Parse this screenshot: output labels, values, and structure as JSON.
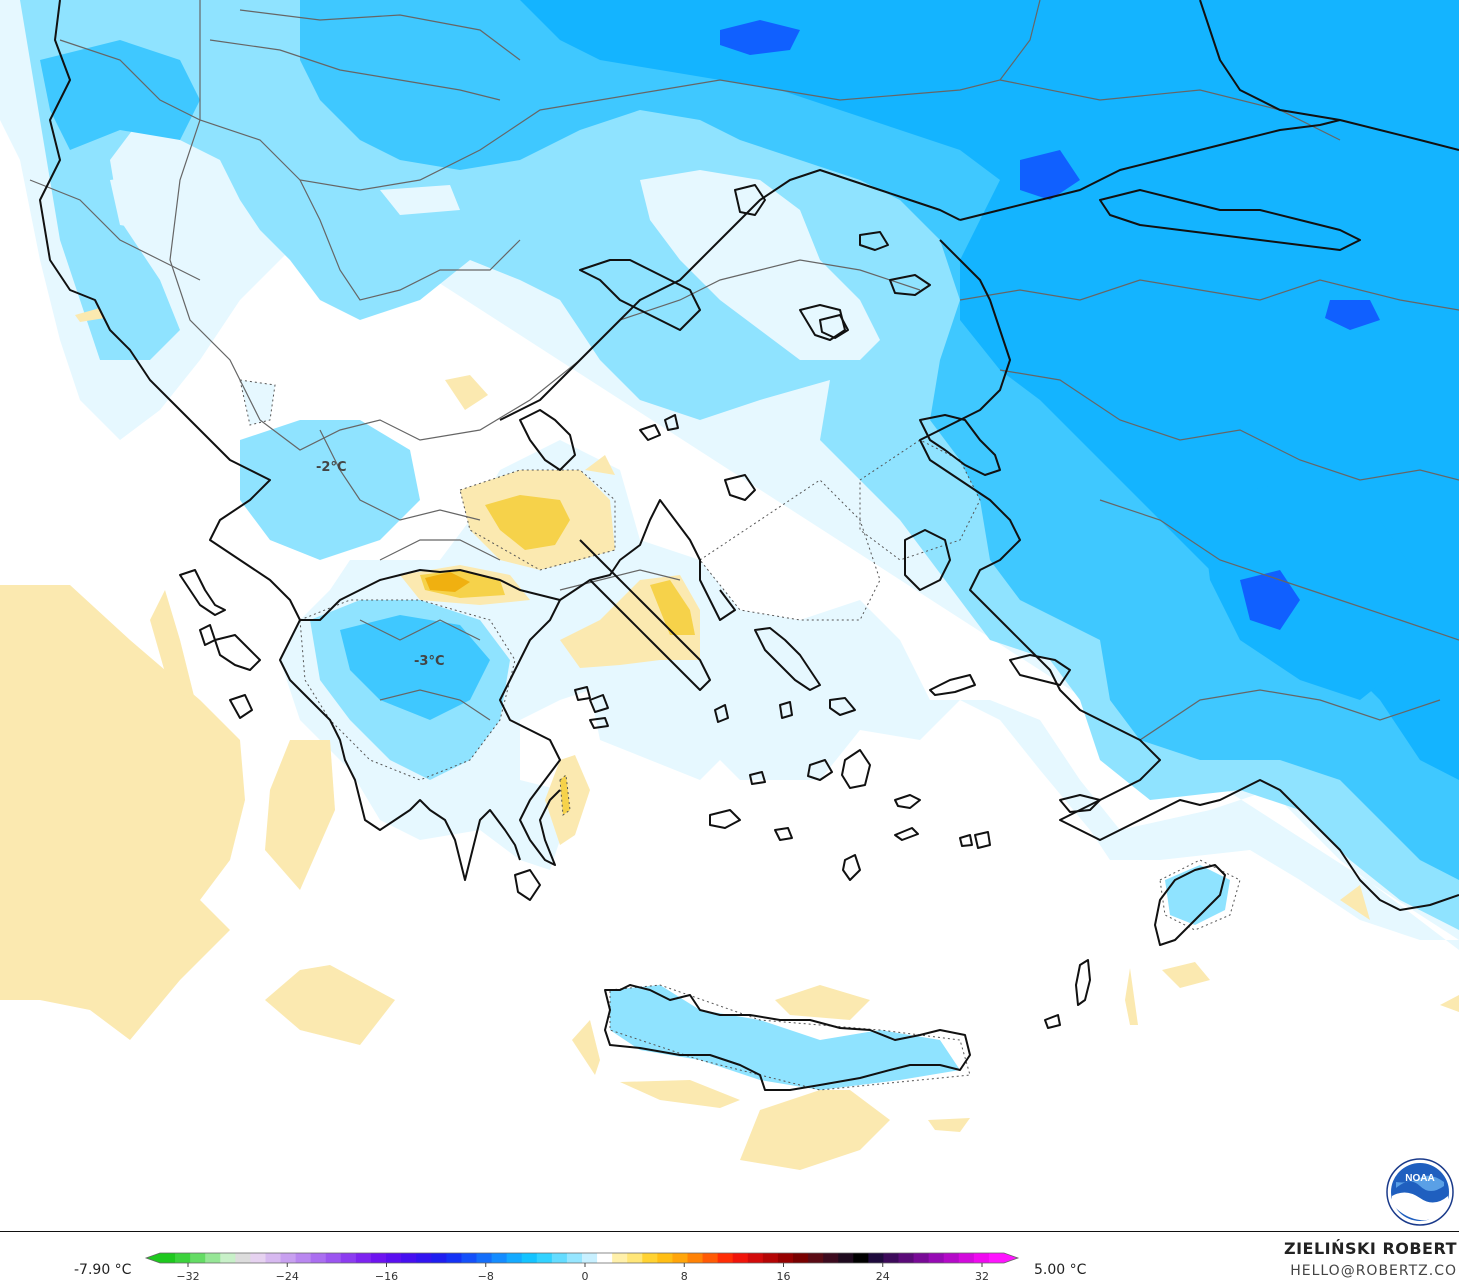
{
  "map": {
    "contour_labels": [
      "-2°C",
      "-3°C"
    ],
    "colors": {
      "deep_blue": "#1060ff",
      "blue": "#14b4ff",
      "mid_blue": "#3fc8ff",
      "light_blue": "#8fe3ff",
      "pale_blue": "#e6f8ff",
      "pale_yellow": "#fbe9b0",
      "yellow": "#f6d24a",
      "amber": "#f0b010",
      "coastline": "#111111",
      "border": "#555555"
    }
  },
  "logo": {
    "icon": "noaa-logo-icon",
    "text": "NOAA"
  },
  "legend": {
    "min_label": "-7.90 °C",
    "max_label": "5.00 °C",
    "ticks": [
      "−32",
      "−24",
      "−16",
      "−8",
      "0",
      "8",
      "16",
      "24",
      "32"
    ],
    "colors": [
      "#1ec81e",
      "#3cd23c",
      "#64dc64",
      "#96e696",
      "#c8f0c8",
      "#dcdcdc",
      "#e6d2f0",
      "#d7b9f0",
      "#c8a0f0",
      "#b987f0",
      "#aa6ef0",
      "#9b55f0",
      "#8c3cf0",
      "#7d23f0",
      "#6e14f0",
      "#5a0ff0",
      "#460ff0",
      "#3214f0",
      "#1e1ef0",
      "#1432f5",
      "#1450fa",
      "#146efa",
      "#148cff",
      "#14aaff",
      "#14c3ff",
      "#32d2ff",
      "#64dcff",
      "#96e6ff",
      "#c8f0ff",
      "#ffffff",
      "#fff0aa",
      "#ffe678",
      "#ffd232",
      "#ffbe14",
      "#ffa50a",
      "#ff8205",
      "#ff5a05",
      "#ff2d05",
      "#f0140a",
      "#d20a0a",
      "#b40505",
      "#960000",
      "#780000",
      "#5a0a14",
      "#3c0a1e",
      "#1e0a1e",
      "#000000",
      "#1e0a3c",
      "#3c0a5a",
      "#5a0a78",
      "#780a96",
      "#960ab4",
      "#b40ac8",
      "#d20adc",
      "#f00af0",
      "#ff14ff"
    ]
  },
  "credits": {
    "author": "ZIELIŃSKI ROBERT",
    "email": "HELLO@ROBERTZ.CO"
  }
}
